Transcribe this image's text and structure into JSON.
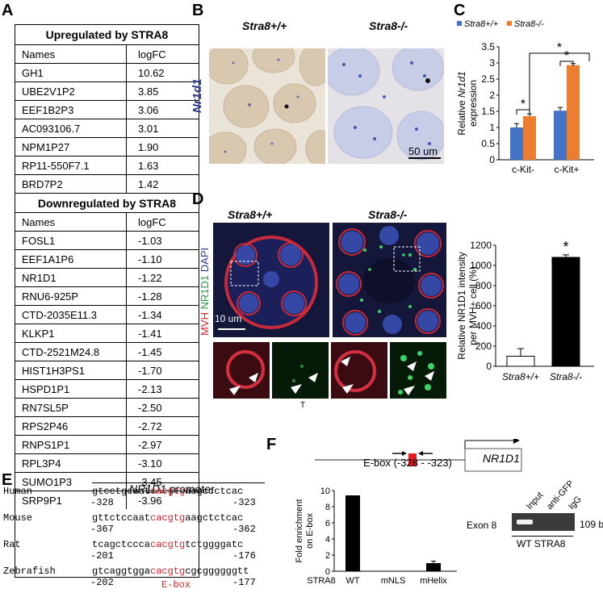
{
  "panels": {
    "a": "A",
    "b": "B",
    "c": "C",
    "d": "D",
    "e": "E",
    "f": "F"
  },
  "table": {
    "up_title": "Upregulated by STRA8",
    "down_title": "Downregulated by STRA8",
    "col_names": "Names",
    "col_logfc": "logFC",
    "up": [
      [
        "GH1",
        "10.62"
      ],
      [
        "UBE2V1P2",
        "3.85"
      ],
      [
        "EEF1B2P3",
        "3.06"
      ],
      [
        "AC093106.7",
        "3.01"
      ],
      [
        "NPM1P27",
        "1.90"
      ],
      [
        "RP11-550F7.1",
        "1.63"
      ],
      [
        "BRD7P2",
        "1.42"
      ]
    ],
    "down": [
      [
        "FOSL1",
        "-1.03"
      ],
      [
        "EEF1A1P6",
        "-1.10"
      ],
      [
        "NR1D1",
        "-1.22"
      ],
      [
        "RNU6-925P",
        "-1.28"
      ],
      [
        "CTD-2035E11.3",
        "-1.34"
      ],
      [
        "KLKP1",
        "-1.41"
      ],
      [
        "CTD-2521M24.8",
        "-1.45"
      ],
      [
        "HIST1H3PS1",
        "-1.70"
      ],
      [
        "HSPD1P1",
        "-2.13"
      ],
      [
        "RN7SL5P",
        "-2.50"
      ],
      [
        "RPS2P46",
        "-2.72"
      ],
      [
        "RNPS1P1",
        "-2.97"
      ],
      [
        "RPL3P4",
        "-3.10"
      ],
      [
        "SUMO1P3",
        "-3.45"
      ],
      [
        "SRP9P1",
        "-3.96"
      ]
    ]
  },
  "panel_b": {
    "wt": "Stra8+/+",
    "ko": "Stra8-/-",
    "gene": "Nr1d1",
    "scale": "50 um"
  },
  "chart_c": {
    "type": "bar",
    "legend": [
      "Stra8+/+",
      "Stra8-/-"
    ],
    "colors": [
      "#4472c4",
      "#ed7d31"
    ],
    "ylabel_pre": "Relative ",
    "ylabel_gene": "Nr1d1",
    "ylabel_post": "expression",
    "categories": [
      "c-Kit-",
      "c-Kit+"
    ],
    "series": [
      {
        "name": "Stra8+/+",
        "values": [
          1.0,
          1.52
        ],
        "err": [
          0.12,
          0.1
        ]
      },
      {
        "name": "Stra8-/-",
        "values": [
          1.35,
          2.93
        ],
        "err": [
          0.07,
          0.05
        ]
      }
    ],
    "ylim": [
      0,
      3.5
    ],
    "yticks": [
      "0",
      "0.5",
      "1",
      "1.5",
      "2",
      "2.5",
      "3",
      "3.5"
    ],
    "star": "*"
  },
  "panel_d": {
    "wt": "Stra8+/+",
    "ko": "Stra8-/-",
    "stain_mvh": "MVH",
    "stain_nr1d1": "NR1D1",
    "stain_dapi": "DAPI",
    "scale": "10 um",
    "tick": "T"
  },
  "chart_d": {
    "type": "bar",
    "ylabel": [
      "Relative NR1D1 intensity",
      "per MVH+ cell (%)"
    ],
    "categories": [
      "Stra8+/+",
      "Stra8-/-"
    ],
    "values": [
      100,
      1080
    ],
    "err": [
      75,
      25
    ],
    "colors": [
      "#ffffff",
      "#000000"
    ],
    "ylim": [
      0,
      1200
    ],
    "yticks": [
      "0",
      "200",
      "400",
      "600",
      "800",
      "1000",
      "1200"
    ],
    "star": "*"
  },
  "panel_e": {
    "promoter_gene": "NR1D1",
    "promoter_word": "promoter",
    "rows": [
      {
        "species": "Human",
        "pre": "gtcctgcaat",
        "box": "cacgtg",
        "post": "aagccctcac",
        "left": "-328",
        "right": "-323"
      },
      {
        "species": "Mouse",
        "pre": "gttctccaat",
        "box": "cacgtg",
        "post": "aagctctcac",
        "left": "-367",
        "right": "-362"
      },
      {
        "species": "Rat",
        "pre": "tcagctccca",
        "box": "cacgtg",
        "post": "tctggggatc",
        "left": "-201",
        "right": "-176"
      },
      {
        "species": "Zebrafish",
        "pre": "gtcaggtgga",
        "box": "cacgtg",
        "post": "cgcggggggtt",
        "left": "-202",
        "right": "-177"
      }
    ],
    "ebox": "E-box"
  },
  "panel_f": {
    "gene": "NR1D1",
    "ebox_label": "E-box (-328 - -323)",
    "ylabel": [
      "Fold enrichment",
      "on E-box"
    ],
    "chart_data": {
      "type": "bar",
      "categories": [
        "WT",
        "mNLS",
        "mHelix"
      ],
      "values": [
        9.4,
        0.05,
        1.0
      ],
      "ylim": [
        0,
        10
      ],
      "yticks": [
        "0",
        "2",
        "4",
        "6",
        "8",
        "10"
      ]
    },
    "xprefix": "STRA8",
    "gel_lanes": [
      "Input",
      "anti-GFP",
      "IgG"
    ],
    "gel_row": "Exon 8",
    "gel_size": "109 bps",
    "gel_bottom": "WT STRA8"
  }
}
